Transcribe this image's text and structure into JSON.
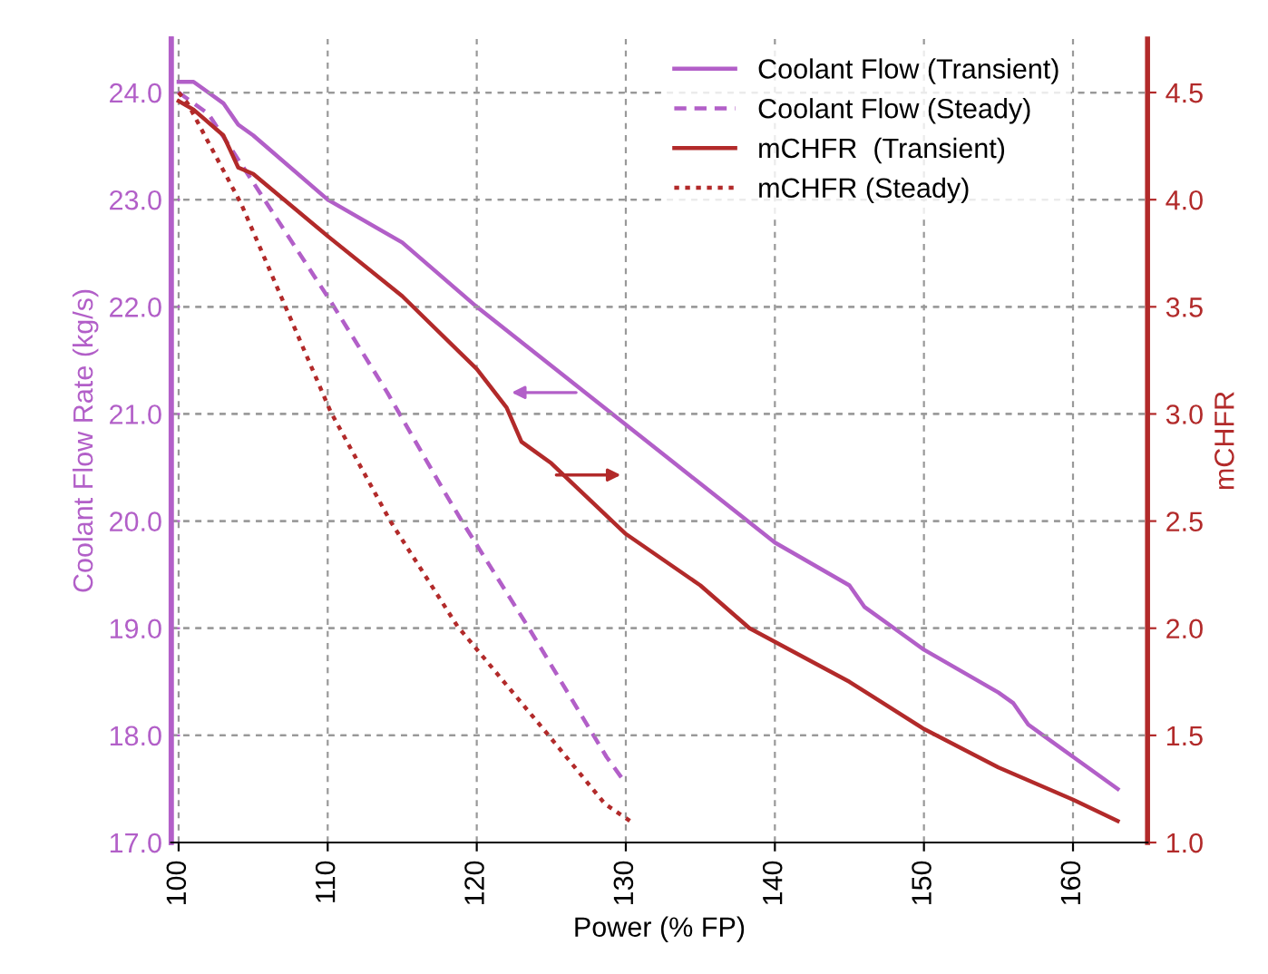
{
  "chart_data": {
    "type": "line",
    "xlabel": "Power (% FP)",
    "ylabel": "Coolant Flow Rate (kg/s)",
    "y2label": "mCHFR",
    "xlim": [
      99.5,
      165
    ],
    "xticks": [
      100,
      110,
      120,
      130,
      140,
      150,
      160
    ],
    "ylim": [
      17.0,
      24.5
    ],
    "yticks": [
      {
        "value": 17,
        "label": "17.0"
      },
      {
        "value": 18,
        "label": "18.0"
      },
      {
        "value": 19,
        "label": "19.0"
      },
      {
        "value": 20,
        "label": "20.0"
      },
      {
        "value": 21,
        "label": "21.0"
      },
      {
        "value": 22,
        "label": "22.0"
      },
      {
        "value": 23,
        "label": "23.0"
      },
      {
        "value": 24,
        "label": "24.0"
      }
    ],
    "y2lim": [
      1.0,
      4.75
    ],
    "y2ticks": [
      {
        "value": 1,
        "label": "1.0"
      },
      {
        "value": 1.5,
        "label": "1.5"
      },
      {
        "value": 2,
        "label": "2.0"
      },
      {
        "value": 2.5,
        "label": "2.5"
      },
      {
        "value": 3,
        "label": "3.0"
      },
      {
        "value": 3.5,
        "label": "3.5"
      },
      {
        "value": 4,
        "label": "4.0"
      },
      {
        "value": 4.5,
        "label": "4.5"
      }
    ],
    "grid": true,
    "legend": "top right",
    "series": [
      {
        "name": "Coolant Flow (Transient)",
        "color": "#b25fc8",
        "line_style": "solid",
        "x": [
          100,
          101,
          102,
          103,
          104,
          105,
          110,
          115,
          120,
          125,
          130,
          135,
          140,
          145,
          146,
          148,
          150,
          155,
          156,
          157,
          158,
          160,
          163
        ],
        "values": [
          24.1,
          24.1,
          24.0,
          23.9,
          23.7,
          23.6,
          23.0,
          22.6,
          22.0,
          21.45,
          20.9,
          20.35,
          19.8,
          19.4,
          19.2,
          19.0,
          18.8,
          18.4,
          18.3,
          18.1,
          18.0,
          17.8,
          17.5
        ]
      },
      {
        "name": "Coolant Flow (Steady)",
        "color": "#b25fc8",
        "line_style": "dashed",
        "x": [
          100,
          102,
          105.1,
          110.2,
          114,
          117.8,
          119,
          123.5,
          128.7,
          130
        ],
        "values": [
          24.0,
          23.8,
          23.14,
          22.05,
          21.2,
          20.28,
          20.0,
          19.0,
          17.8,
          17.55
        ]
      },
      {
        "name": "mCHFR  (Transient)",
        "color": "#b22a2a",
        "line_style": "solid",
        "axis": "y2",
        "x": [
          100,
          101,
          103,
          104,
          105,
          110,
          115,
          120,
          122,
          123,
          125,
          130,
          135,
          138.3,
          145,
          150,
          155,
          160,
          163
        ],
        "values": [
          4.46,
          4.42,
          4.3,
          4.15,
          4.12,
          3.83,
          3.55,
          3.21,
          3.03,
          2.87,
          2.77,
          2.44,
          2.2,
          2.0,
          1.75,
          1.53,
          1.35,
          1.2,
          1.1
        ]
      },
      {
        "name": "mCHFR (Steady)",
        "color": "#b22a2a",
        "line_style": "dotted",
        "axis": "y2",
        "x": [
          100,
          100.6,
          104.2,
          110.2,
          114.2,
          118.7,
          124.7,
          128.6,
          130.3
        ],
        "values": [
          4.5,
          4.45,
          3.98,
          3.01,
          2.5,
          2.01,
          1.51,
          1.18,
          1.1
        ]
      }
    ]
  }
}
